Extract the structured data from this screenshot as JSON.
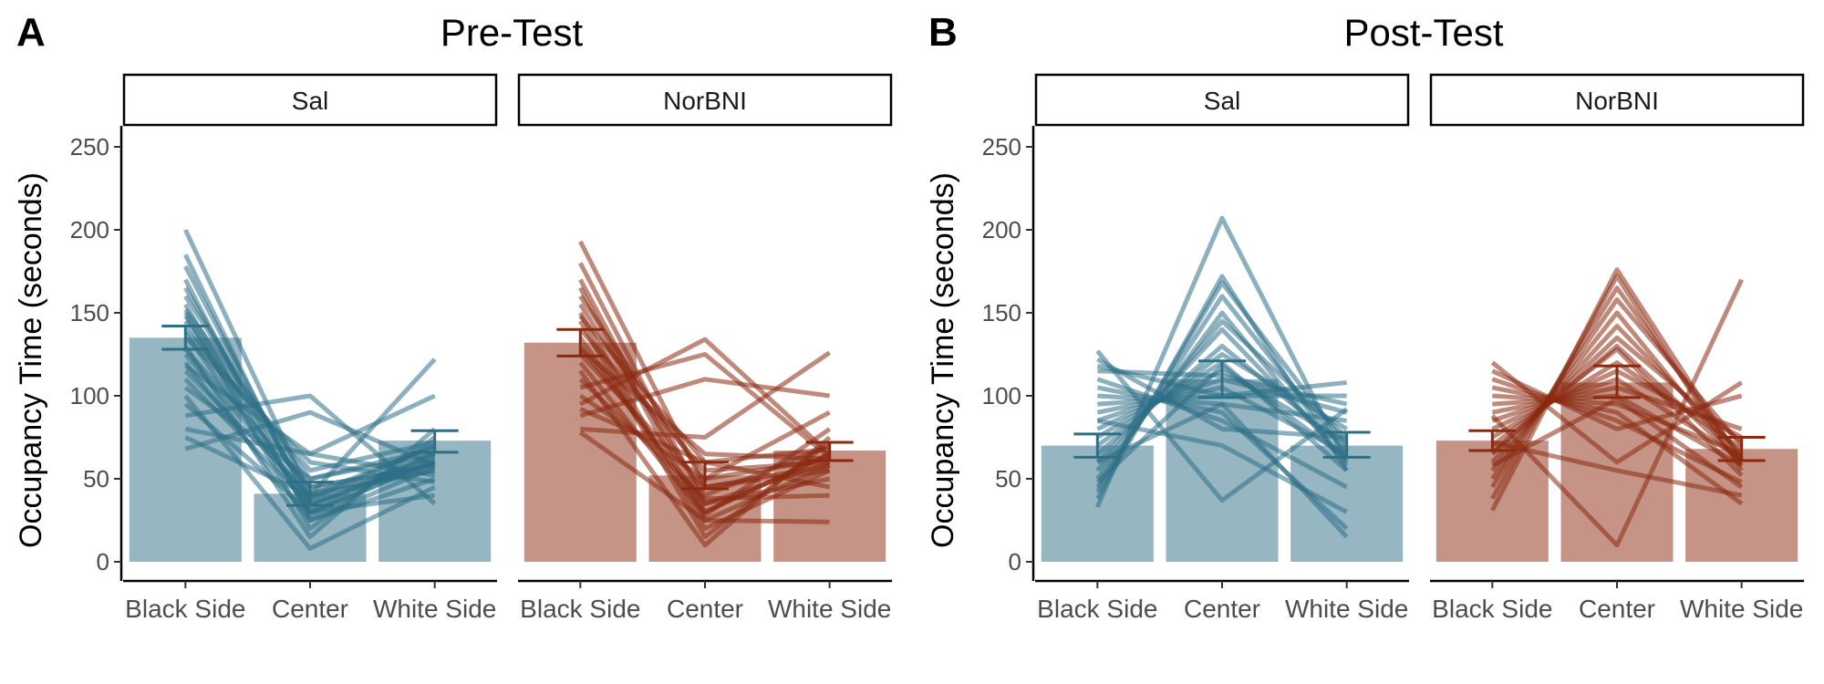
{
  "colors": {
    "Sal": "#2e6f86",
    "NorBNI": "#8b2a10",
    "axis": "#000000"
  },
  "chart_data": [
    {
      "type": "bar",
      "panel_label": "A",
      "title": "Pre-Test",
      "ylabel": "Occupancy Time (seconds)",
      "xlabel": "",
      "ylim": [
        0,
        250
      ],
      "yticks": [
        0,
        50,
        100,
        150,
        200,
        250
      ],
      "categories": [
        "Black Side",
        "Center",
        "White Side"
      ],
      "grid": false,
      "facets": [
        {
          "name": "Sal",
          "color": "#2e6f86",
          "means": [
            135,
            41,
            73
          ],
          "error_low": [
            128,
            34,
            66
          ],
          "error_high": [
            142,
            48,
            79
          ],
          "subjects": [
            [
              200,
              40,
              55
            ],
            [
              185,
              30,
              65
            ],
            [
              178,
              35,
              60
            ],
            [
              170,
              25,
              50
            ],
            [
              165,
              38,
              70
            ],
            [
              160,
              45,
              58
            ],
            [
              155,
              28,
              62
            ],
            [
              152,
              50,
              68
            ],
            [
              150,
              20,
              75
            ],
            [
              148,
              42,
              55
            ],
            [
              145,
              33,
              66
            ],
            [
              140,
              55,
              72
            ],
            [
              138,
              30,
              60
            ],
            [
              135,
              60,
              48
            ],
            [
              130,
              15,
              80
            ],
            [
              128,
              45,
              58
            ],
            [
              125,
              38,
              63
            ],
            [
              120,
              25,
              57
            ],
            [
              118,
              65,
              52
            ],
            [
              115,
              40,
              70
            ],
            [
              110,
              35,
              60
            ],
            [
              105,
              50,
              65
            ],
            [
              100,
              8,
              45
            ],
            [
              95,
              30,
              40
            ],
            [
              88,
              100,
              35
            ],
            [
              80,
              65,
              100
            ],
            [
              75,
              40,
              122
            ],
            [
              68,
              90,
              58
            ]
          ]
        },
        {
          "name": "NorBNI",
          "color": "#8b2a10",
          "means": [
            132,
            52,
            67
          ],
          "error_low": [
            124,
            44,
            61
          ],
          "error_high": [
            140,
            60,
            72
          ],
          "subjects": [
            [
              193,
              45,
              55
            ],
            [
              180,
              35,
              60
            ],
            [
              170,
              30,
              65
            ],
            [
              165,
              25,
              58
            ],
            [
              160,
              50,
              62
            ],
            [
              155,
              40,
              70
            ],
            [
              150,
              20,
              55
            ],
            [
              148,
              60,
              68
            ],
            [
              145,
              15,
              72
            ],
            [
              140,
              55,
              60
            ],
            [
              135,
              30,
              65
            ],
            [
              130,
              35,
              50
            ],
            [
              128,
              65,
              62
            ],
            [
              125,
              45,
              58
            ],
            [
              120,
              28,
              80
            ],
            [
              115,
              10,
              75
            ],
            [
              110,
              38,
              40
            ],
            [
              105,
              125,
              63
            ],
            [
              100,
              50,
              90
            ],
            [
              95,
              134,
              65
            ],
            [
              88,
              110,
              100
            ],
            [
              80,
              75,
              126
            ],
            [
              78,
              25,
              24
            ],
            [
              92,
              60,
              45
            ]
          ]
        }
      ]
    },
    {
      "type": "bar",
      "panel_label": "B",
      "title": "Post-Test",
      "ylabel": "Occupancy Time (seconds)",
      "xlabel": "",
      "ylim": [
        0,
        250
      ],
      "yticks": [
        0,
        50,
        100,
        150,
        200,
        250
      ],
      "categories": [
        "Black Side",
        "Center",
        "White Side"
      ],
      "grid": false,
      "facets": [
        {
          "name": "Sal",
          "color": "#2e6f86",
          "means": [
            70,
            110,
            70
          ],
          "error_low": [
            63,
            99,
            63
          ],
          "error_high": [
            77,
            121,
            78
          ],
          "subjects": [
            [
              33,
              207,
              60
            ],
            [
              38,
              172,
              55
            ],
            [
              42,
              168,
              70
            ],
            [
              45,
              160,
              65
            ],
            [
              50,
              150,
              58
            ],
            [
              55,
              145,
              75
            ],
            [
              60,
              140,
              62
            ],
            [
              65,
              130,
              68
            ],
            [
              70,
              125,
              80
            ],
            [
              75,
              120,
              55
            ],
            [
              80,
              115,
              72
            ],
            [
              85,
              110,
              90
            ],
            [
              90,
              105,
              65
            ],
            [
              95,
              100,
              100
            ],
            [
              100,
              95,
              85
            ],
            [
              105,
              90,
              20
            ],
            [
              110,
              85,
              45
            ],
            [
              115,
              112,
              95
            ],
            [
              118,
              100,
              108
            ],
            [
              122,
              80,
              75
            ],
            [
              127,
              37,
              92
            ],
            [
              60,
              95,
              15
            ],
            [
              85,
              70,
              30
            ],
            [
              48,
              118,
              62
            ]
          ]
        },
        {
          "name": "NorBNI",
          "color": "#8b2a10",
          "means": [
            73,
            108,
            68
          ],
          "error_low": [
            67,
            99,
            61
          ],
          "error_high": [
            79,
            118,
            75
          ],
          "subjects": [
            [
              31,
              176,
              60
            ],
            [
              38,
              172,
              55
            ],
            [
              45,
              165,
              62
            ],
            [
              50,
              158,
              70
            ],
            [
              55,
              150,
              58
            ],
            [
              60,
              142,
              65
            ],
            [
              65,
              135,
              72
            ],
            [
              70,
              128,
              52
            ],
            [
              75,
              120,
              68
            ],
            [
              80,
              115,
              75
            ],
            [
              85,
              110,
              62
            ],
            [
              90,
              105,
              80
            ],
            [
              95,
              100,
              58
            ],
            [
              100,
              95,
              65
            ],
            [
              105,
              90,
              35
            ],
            [
              110,
              85,
              48
            ],
            [
              115,
              80,
              100
            ],
            [
              120,
              60,
              108
            ],
            [
              88,
              10,
              170
            ],
            [
              72,
              55,
              40
            ],
            [
              58,
              98,
              45
            ],
            [
              66,
              130,
              60
            ]
          ]
        }
      ]
    }
  ]
}
